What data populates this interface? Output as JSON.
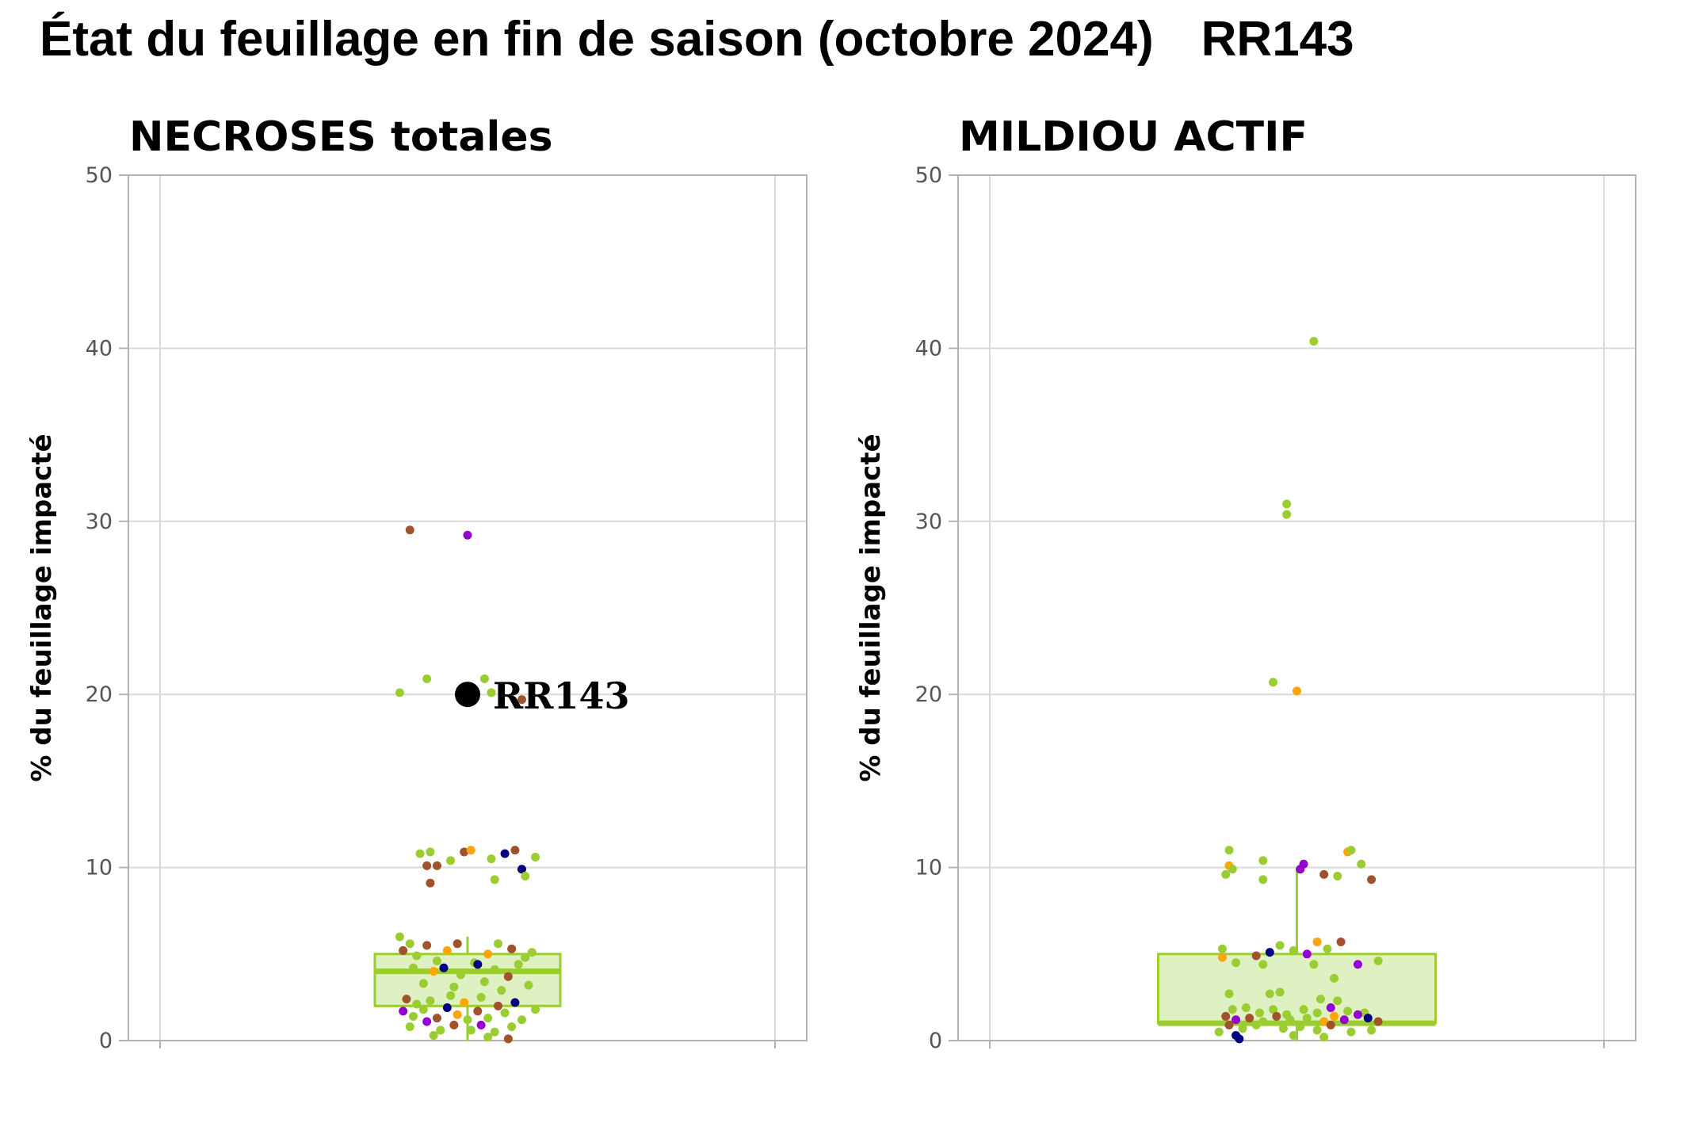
{
  "title": "État du feuillage en fin de saison (octobre 2024)",
  "title_code": "RR143",
  "colors": {
    "box_fill": "#dff0c3",
    "box_stroke": "#9acd32",
    "grid": "#d9d9d9",
    "frame": "#b3b3b3",
    "point_palette": [
      "#9acd32",
      "#a0522d",
      "#ffa500",
      "#9400d3",
      "#000080"
    ],
    "highlight": "#000000"
  },
  "chart_data": [
    {
      "type": "boxplot-jitter",
      "title": "NECROSES totales",
      "ylabel": "% du feuillage impacté",
      "ylim": [
        0,
        50
      ],
      "yticks": [
        0,
        10,
        20,
        30,
        40,
        50
      ],
      "grid": true,
      "box": {
        "q1": 2,
        "median": 4,
        "q3": 5,
        "whisker_low": 0,
        "whisker_high": 6
      },
      "highlight": {
        "label": "RR143",
        "value": 20
      },
      "points": [
        {
          "x": -0.17,
          "y": 29.5,
          "c": 1
        },
        {
          "x": 0.0,
          "y": 29.2,
          "c": 3
        },
        {
          "x": -0.2,
          "y": 20.1,
          "c": 0
        },
        {
          "x": -0.12,
          "y": 20.9,
          "c": 0
        },
        {
          "x": 0.05,
          "y": 20.9,
          "c": 0
        },
        {
          "x": 0.07,
          "y": 20.1,
          "c": 0
        },
        {
          "x": 0.16,
          "y": 19.7,
          "c": 1
        },
        {
          "x": -0.14,
          "y": 10.8,
          "c": 0
        },
        {
          "x": -0.12,
          "y": 10.1,
          "c": 1
        },
        {
          "x": -0.11,
          "y": 10.9,
          "c": 0
        },
        {
          "x": -0.11,
          "y": 9.1,
          "c": 1
        },
        {
          "x": -0.09,
          "y": 10.1,
          "c": 1
        },
        {
          "x": -0.05,
          "y": 10.4,
          "c": 0
        },
        {
          "x": -0.01,
          "y": 10.9,
          "c": 1
        },
        {
          "x": 0.01,
          "y": 11.0,
          "c": 2
        },
        {
          "x": 0.07,
          "y": 10.5,
          "c": 0
        },
        {
          "x": 0.08,
          "y": 9.3,
          "c": 0
        },
        {
          "x": 0.11,
          "y": 10.8,
          "c": 4
        },
        {
          "x": 0.14,
          "y": 11.0,
          "c": 1
        },
        {
          "x": 0.16,
          "y": 9.9,
          "c": 4
        },
        {
          "x": 0.17,
          "y": 9.5,
          "c": 0
        },
        {
          "x": 0.2,
          "y": 10.6,
          "c": 0
        },
        {
          "x": -0.2,
          "y": 6.0,
          "c": 0
        },
        {
          "x": -0.17,
          "y": 5.6,
          "c": 0
        },
        {
          "x": -0.19,
          "y": 5.2,
          "c": 1
        },
        {
          "x": -0.15,
          "y": 4.9,
          "c": 0
        },
        {
          "x": -0.12,
          "y": 5.5,
          "c": 1
        },
        {
          "x": -0.09,
          "y": 4.6,
          "c": 0
        },
        {
          "x": -0.06,
          "y": 5.2,
          "c": 2
        },
        {
          "x": -0.03,
          "y": 5.6,
          "c": 1
        },
        {
          "x": 0.02,
          "y": 4.5,
          "c": 0
        },
        {
          "x": 0.06,
          "y": 5.0,
          "c": 2
        },
        {
          "x": 0.09,
          "y": 5.6,
          "c": 0
        },
        {
          "x": 0.13,
          "y": 5.3,
          "c": 1
        },
        {
          "x": 0.17,
          "y": 4.8,
          "c": 0
        },
        {
          "x": 0.19,
          "y": 5.1,
          "c": 0
        },
        {
          "x": -0.16,
          "y": 4.2,
          "c": 0
        },
        {
          "x": -0.1,
          "y": 4.0,
          "c": 2
        },
        {
          "x": -0.07,
          "y": 4.2,
          "c": 4
        },
        {
          "x": -0.02,
          "y": 3.8,
          "c": 0
        },
        {
          "x": 0.03,
          "y": 4.4,
          "c": 4
        },
        {
          "x": 0.08,
          "y": 4.1,
          "c": 0
        },
        {
          "x": 0.12,
          "y": 3.7,
          "c": 1
        },
        {
          "x": 0.15,
          "y": 4.4,
          "c": 0
        },
        {
          "x": -0.13,
          "y": 3.3,
          "c": 0
        },
        {
          "x": -0.04,
          "y": 3.1,
          "c": 0
        },
        {
          "x": 0.05,
          "y": 3.4,
          "c": 0
        },
        {
          "x": 0.1,
          "y": 2.9,
          "c": 0
        },
        {
          "x": 0.18,
          "y": 3.2,
          "c": 0
        },
        {
          "x": -0.18,
          "y": 2.4,
          "c": 1
        },
        {
          "x": -0.15,
          "y": 2.1,
          "c": 0
        },
        {
          "x": -0.11,
          "y": 2.3,
          "c": 0
        },
        {
          "x": -0.05,
          "y": 2.6,
          "c": 0
        },
        {
          "x": -0.01,
          "y": 2.2,
          "c": 2
        },
        {
          "x": 0.04,
          "y": 2.5,
          "c": 0
        },
        {
          "x": 0.09,
          "y": 2.0,
          "c": 1
        },
        {
          "x": 0.14,
          "y": 2.2,
          "c": 4
        },
        {
          "x": -0.19,
          "y": 1.7,
          "c": 3
        },
        {
          "x": -0.16,
          "y": 1.4,
          "c": 0
        },
        {
          "x": -0.13,
          "y": 1.8,
          "c": 0
        },
        {
          "x": -0.09,
          "y": 1.3,
          "c": 1
        },
        {
          "x": -0.06,
          "y": 1.9,
          "c": 4
        },
        {
          "x": -0.03,
          "y": 1.5,
          "c": 2
        },
        {
          "x": 0.0,
          "y": 1.2,
          "c": 0
        },
        {
          "x": 0.03,
          "y": 1.7,
          "c": 1
        },
        {
          "x": 0.06,
          "y": 1.3,
          "c": 0
        },
        {
          "x": 0.11,
          "y": 1.6,
          "c": 0
        },
        {
          "x": 0.16,
          "y": 1.2,
          "c": 0
        },
        {
          "x": 0.2,
          "y": 1.8,
          "c": 0
        },
        {
          "x": -0.17,
          "y": 0.8,
          "c": 0
        },
        {
          "x": -0.12,
          "y": 1.1,
          "c": 3
        },
        {
          "x": -0.08,
          "y": 0.6,
          "c": 0
        },
        {
          "x": -0.04,
          "y": 0.9,
          "c": 1
        },
        {
          "x": 0.01,
          "y": 0.6,
          "c": 0
        },
        {
          "x": 0.04,
          "y": 0.9,
          "c": 3
        },
        {
          "x": 0.08,
          "y": 0.5,
          "c": 0
        },
        {
          "x": 0.13,
          "y": 0.8,
          "c": 0
        },
        {
          "x": -0.1,
          "y": 0.3,
          "c": 0
        },
        {
          "x": 0.06,
          "y": 0.2,
          "c": 0
        },
        {
          "x": 0.12,
          "y": 0.1,
          "c": 1
        }
      ]
    },
    {
      "type": "boxplot-jitter",
      "title": "MILDIOU ACTIF",
      "ylabel": "% du feuillage impacté",
      "ylim": [
        0,
        50
      ],
      "yticks": [
        0,
        10,
        20,
        30,
        40,
        50
      ],
      "grid": true,
      "box": {
        "q1": 1,
        "median": 1,
        "q3": 5,
        "whisker_low": 0,
        "whisker_high": 10
      },
      "points": [
        {
          "x": 0.05,
          "y": 40.4,
          "c": 0
        },
        {
          "x": -0.03,
          "y": 31.0,
          "c": 0
        },
        {
          "x": -0.03,
          "y": 30.4,
          "c": 0
        },
        {
          "x": -0.07,
          "y": 20.7,
          "c": 0
        },
        {
          "x": 0.0,
          "y": 20.2,
          "c": 2
        },
        {
          "x": -0.2,
          "y": 11.0,
          "c": 0
        },
        {
          "x": -0.2,
          "y": 10.1,
          "c": 2
        },
        {
          "x": -0.21,
          "y": 9.6,
          "c": 0
        },
        {
          "x": -0.19,
          "y": 9.9,
          "c": 0
        },
        {
          "x": -0.1,
          "y": 10.4,
          "c": 0
        },
        {
          "x": -0.1,
          "y": 9.3,
          "c": 0
        },
        {
          "x": 0.02,
          "y": 10.2,
          "c": 3
        },
        {
          "x": 0.01,
          "y": 9.9,
          "c": 3
        },
        {
          "x": 0.08,
          "y": 9.6,
          "c": 1
        },
        {
          "x": 0.12,
          "y": 9.5,
          "c": 0
        },
        {
          "x": 0.15,
          "y": 10.9,
          "c": 2
        },
        {
          "x": 0.16,
          "y": 11.0,
          "c": 0
        },
        {
          "x": 0.19,
          "y": 10.2,
          "c": 0
        },
        {
          "x": 0.22,
          "y": 9.3,
          "c": 1
        },
        {
          "x": -0.22,
          "y": 5.3,
          "c": 0
        },
        {
          "x": -0.22,
          "y": 4.8,
          "c": 2
        },
        {
          "x": -0.18,
          "y": 4.5,
          "c": 0
        },
        {
          "x": -0.12,
          "y": 4.9,
          "c": 1
        },
        {
          "x": -0.08,
          "y": 5.1,
          "c": 4
        },
        {
          "x": -0.05,
          "y": 5.5,
          "c": 0
        },
        {
          "x": -0.01,
          "y": 5.2,
          "c": 0
        },
        {
          "x": 0.03,
          "y": 5.0,
          "c": 3
        },
        {
          "x": 0.06,
          "y": 5.7,
          "c": 2
        },
        {
          "x": 0.09,
          "y": 5.3,
          "c": 0
        },
        {
          "x": 0.13,
          "y": 5.7,
          "c": 1
        },
        {
          "x": 0.18,
          "y": 4.4,
          "c": 3
        },
        {
          "x": 0.24,
          "y": 4.6,
          "c": 0
        },
        {
          "x": -0.1,
          "y": 4.4,
          "c": 0
        },
        {
          "x": 0.05,
          "y": 4.4,
          "c": 0
        },
        {
          "x": 0.11,
          "y": 3.6,
          "c": 0
        },
        {
          "x": -0.2,
          "y": 2.7,
          "c": 0
        },
        {
          "x": -0.08,
          "y": 2.7,
          "c": 0
        },
        {
          "x": -0.05,
          "y": 2.8,
          "c": 0
        },
        {
          "x": 0.07,
          "y": 2.4,
          "c": 0
        },
        {
          "x": 0.12,
          "y": 2.3,
          "c": 0
        },
        {
          "x": -0.19,
          "y": 1.8,
          "c": 0
        },
        {
          "x": -0.15,
          "y": 1.9,
          "c": 0
        },
        {
          "x": -0.11,
          "y": 1.6,
          "c": 0
        },
        {
          "x": -0.07,
          "y": 1.8,
          "c": 0
        },
        {
          "x": -0.03,
          "y": 1.5,
          "c": 0
        },
        {
          "x": 0.02,
          "y": 1.8,
          "c": 0
        },
        {
          "x": 0.06,
          "y": 1.6,
          "c": 0
        },
        {
          "x": 0.1,
          "y": 1.9,
          "c": 3
        },
        {
          "x": 0.15,
          "y": 1.7,
          "c": 0
        },
        {
          "x": 0.2,
          "y": 1.6,
          "c": 0
        },
        {
          "x": -0.21,
          "y": 1.4,
          "c": 1
        },
        {
          "x": -0.18,
          "y": 1.2,
          "c": 3
        },
        {
          "x": -0.14,
          "y": 1.3,
          "c": 1
        },
        {
          "x": -0.1,
          "y": 1.1,
          "c": 0
        },
        {
          "x": -0.06,
          "y": 1.4,
          "c": 1
        },
        {
          "x": -0.02,
          "y": 1.2,
          "c": 0
        },
        {
          "x": 0.03,
          "y": 1.3,
          "c": 0
        },
        {
          "x": 0.08,
          "y": 1.1,
          "c": 2
        },
        {
          "x": 0.11,
          "y": 1.4,
          "c": 2
        },
        {
          "x": 0.14,
          "y": 1.2,
          "c": 3
        },
        {
          "x": 0.18,
          "y": 1.5,
          "c": 3
        },
        {
          "x": 0.21,
          "y": 1.3,
          "c": 4
        },
        {
          "x": 0.24,
          "y": 1.1,
          "c": 1
        },
        {
          "x": -0.2,
          "y": 0.9,
          "c": 1
        },
        {
          "x": -0.16,
          "y": 0.7,
          "c": 0
        },
        {
          "x": -0.12,
          "y": 0.9,
          "c": 0
        },
        {
          "x": -0.04,
          "y": 0.7,
          "c": 0
        },
        {
          "x": 0.01,
          "y": 0.8,
          "c": 0
        },
        {
          "x": 0.06,
          "y": 0.6,
          "c": 0
        },
        {
          "x": 0.1,
          "y": 0.9,
          "c": 1
        },
        {
          "x": 0.16,
          "y": 0.5,
          "c": 0
        },
        {
          "x": 0.22,
          "y": 0.6,
          "c": 0
        },
        {
          "x": -0.23,
          "y": 0.5,
          "c": 0
        },
        {
          "x": -0.18,
          "y": 0.3,
          "c": 4
        },
        {
          "x": -0.17,
          "y": 0.1,
          "c": 4
        },
        {
          "x": -0.01,
          "y": 0.3,
          "c": 0
        },
        {
          "x": 0.08,
          "y": 0.2,
          "c": 0
        }
      ]
    }
  ]
}
